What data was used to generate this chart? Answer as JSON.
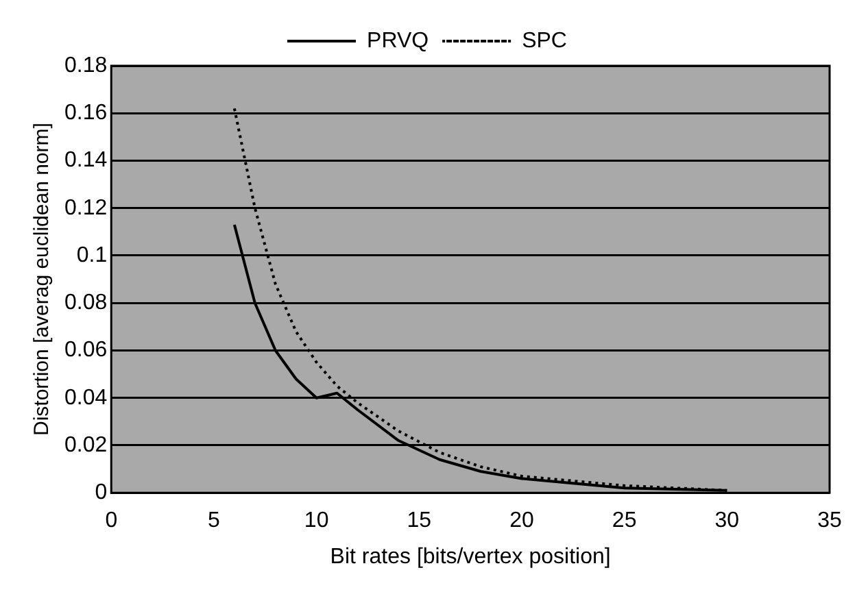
{
  "chart_data": {
    "type": "line",
    "xlabel": "Bit rates [bits/vertex position]",
    "ylabel": "Distortion [averag euclidean norm]",
    "xlim": [
      0,
      35
    ],
    "xticks": [
      0,
      5,
      10,
      15,
      20,
      25,
      30,
      35
    ],
    "ylim": [
      0,
      0.18
    ],
    "yticks": [
      0,
      0.02,
      0.04,
      0.06,
      0.08,
      0.1,
      0.12,
      0.14,
      0.16,
      0.18
    ],
    "grid": "y",
    "legend": "top",
    "marker": "none",
    "series": [
      {
        "name": "PRVQ",
        "color": "#000000",
        "line_style": "solid",
        "x": [
          6,
          7,
          8,
          9,
          10,
          11,
          12,
          14,
          16,
          18,
          20,
          25,
          30
        ],
        "values": [
          0.113,
          0.08,
          0.06,
          0.048,
          0.04,
          0.042,
          0.035,
          0.022,
          0.014,
          0.009,
          0.006,
          0.002,
          0.001
        ]
      },
      {
        "name": "SPC",
        "color": "#000000",
        "line_style": "dotted",
        "x": [
          6,
          7,
          8,
          9,
          10,
          11,
          12,
          14,
          16,
          18,
          20,
          25,
          30
        ],
        "values": [
          0.162,
          0.12,
          0.088,
          0.068,
          0.055,
          0.045,
          0.038,
          0.026,
          0.017,
          0.011,
          0.007,
          0.003,
          0.001
        ]
      }
    ]
  }
}
